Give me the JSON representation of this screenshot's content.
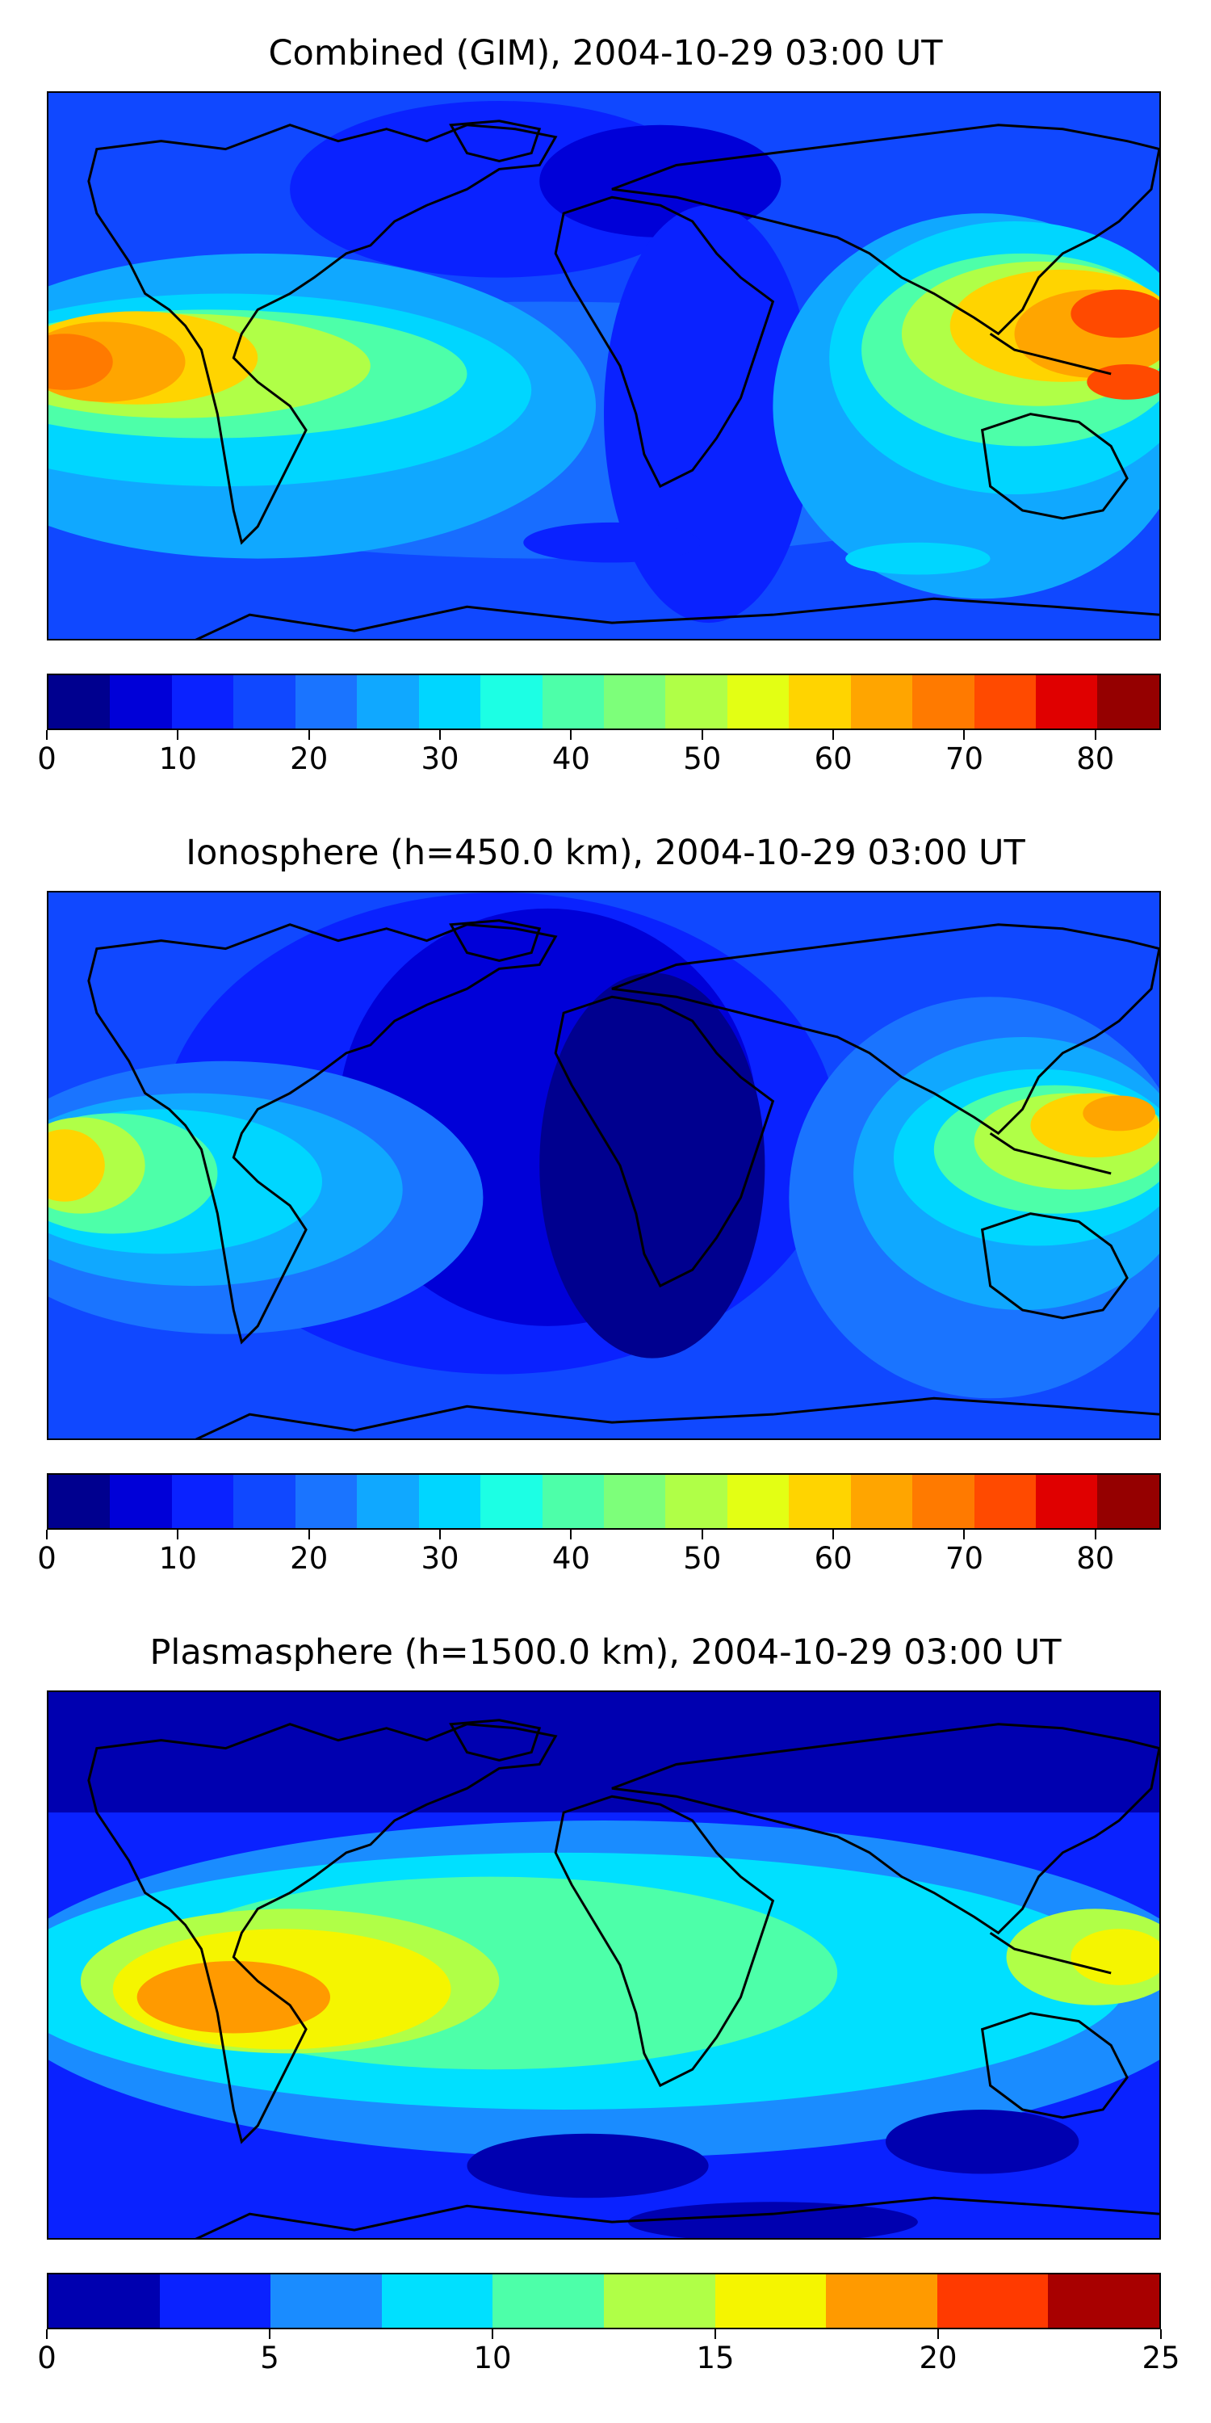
{
  "panels": [
    {
      "id": "combined",
      "title": "Combined (GIM), 2004-10-29 03:00 UT",
      "colorbar": {
        "range": [
          0,
          85
        ],
        "step": 5,
        "ticks": [
          "0",
          "10",
          "20",
          "30",
          "40",
          "50",
          "60",
          "70",
          "80"
        ],
        "colors": [
          "#00008f",
          "#0000d8",
          "#0a22ff",
          "#1048ff",
          "#1a74ff",
          "#10a8ff",
          "#00d6ff",
          "#1cffe4",
          "#4dffa9",
          "#7dff7a",
          "#b0ff47",
          "#e3ff14",
          "#ffd400",
          "#ffa500",
          "#ff7a00",
          "#ff4a00",
          "#e00000",
          "#950000"
        ]
      }
    },
    {
      "id": "ionosphere",
      "title": "Ionosphere  (h=450.0 km), 2004-10-29 03:00 UT",
      "colorbar": {
        "range": [
          0,
          85
        ],
        "step": 5,
        "ticks": [
          "0",
          "10",
          "20",
          "30",
          "40",
          "50",
          "60",
          "70",
          "80"
        ],
        "colors": [
          "#00008f",
          "#0000d8",
          "#0a22ff",
          "#1048ff",
          "#1a74ff",
          "#10a8ff",
          "#00d6ff",
          "#1cffe4",
          "#4dffa9",
          "#7dff7a",
          "#b0ff47",
          "#e3ff14",
          "#ffd400",
          "#ffa500",
          "#ff7a00",
          "#ff4a00",
          "#e00000",
          "#950000"
        ]
      }
    },
    {
      "id": "plasmasphere",
      "title": "Plasmasphere (h=1500.0 km), 2004-10-29 03:00 UT",
      "colorbar": {
        "range": [
          0,
          25
        ],
        "step": 2.5,
        "ticks": [
          "0",
          "5",
          "10",
          "15",
          "20",
          "25"
        ],
        "colors": [
          "#0000b0",
          "#0a22ff",
          "#1a8cff",
          "#00e0ff",
          "#4dffa9",
          "#b0ff47",
          "#f5f500",
          "#ff9a00",
          "#ff3a00",
          "#a80000"
        ]
      }
    }
  ]
}
